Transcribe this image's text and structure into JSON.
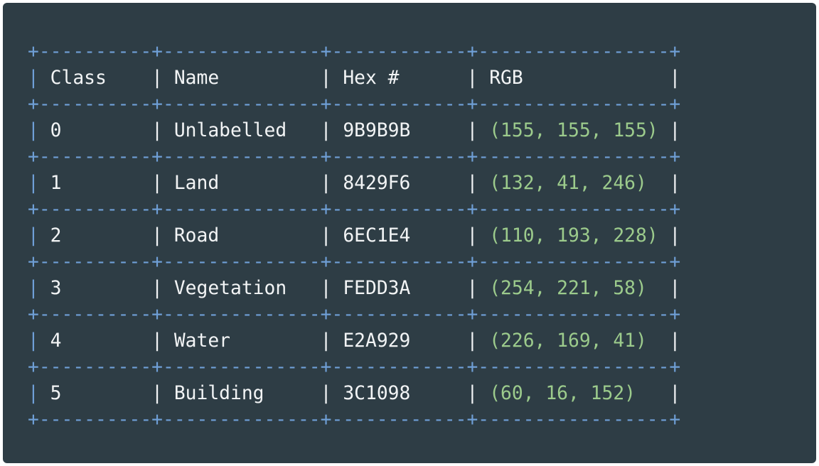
{
  "colors": {
    "background": "#2e3d45",
    "border": "#6f9fd6",
    "text": "#f2f4f5",
    "rgb_text": "#9ccb8c"
  },
  "table": {
    "headers": [
      "Class",
      "Name",
      "Hex #",
      "RGB"
    ],
    "rows": [
      {
        "class": "0",
        "name": "Unlabelled",
        "hex": "9B9B9B",
        "rgb": "(155, 155, 155)"
      },
      {
        "class": "1",
        "name": "Land",
        "hex": "8429F6",
        "rgb": "(132, 41, 246)"
      },
      {
        "class": "2",
        "name": "Road",
        "hex": "6EC1E4",
        "rgb": "(110, 193, 228)"
      },
      {
        "class": "3",
        "name": "Vegetation",
        "hex": "FEDD3A",
        "rgb": "(254, 221, 58)"
      },
      {
        "class": "4",
        "name": "Water",
        "hex": "E2A929",
        "rgb": "(226, 169, 41)"
      },
      {
        "class": "5",
        "name": "Building",
        "hex": "3C1098",
        "rgb": "(60, 16, 152)"
      }
    ]
  }
}
